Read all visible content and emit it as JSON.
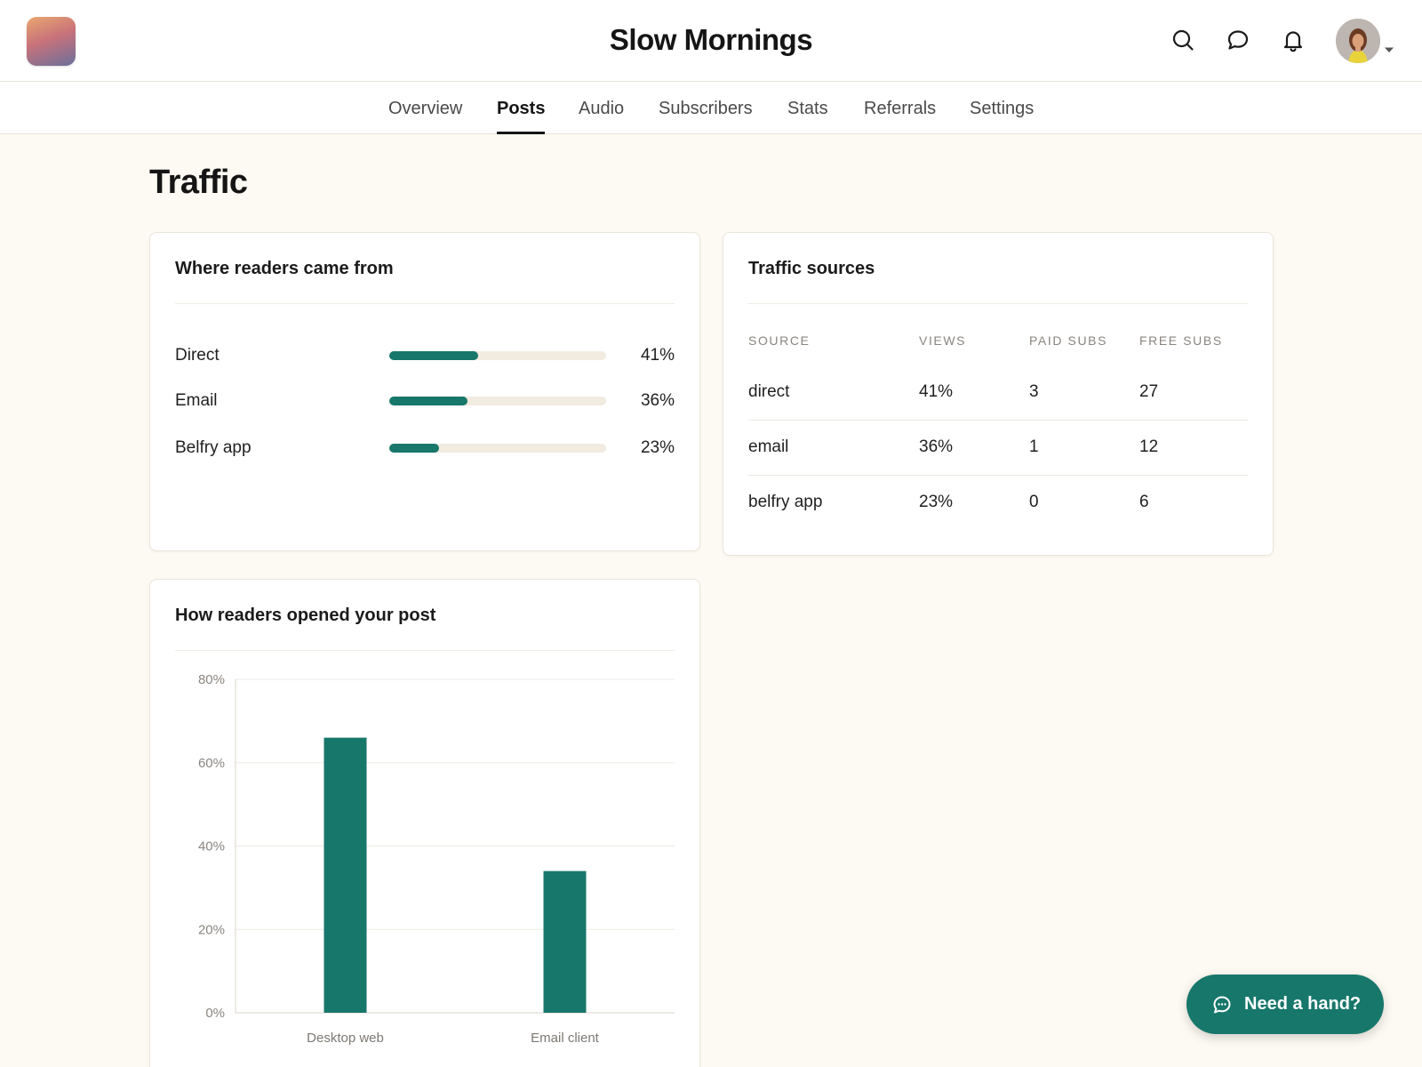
{
  "header": {
    "publication_title": "Slow Mornings",
    "icons": [
      "search-icon",
      "chat-icon",
      "bell-icon",
      "avatar",
      "chevron-down-icon"
    ]
  },
  "tabs": [
    {
      "label": "Overview",
      "active": false
    },
    {
      "label": "Posts",
      "active": true
    },
    {
      "label": "Audio",
      "active": false
    },
    {
      "label": "Subscribers",
      "active": false
    },
    {
      "label": "Stats",
      "active": false
    },
    {
      "label": "Referrals",
      "active": false
    },
    {
      "label": "Settings",
      "active": false
    }
  ],
  "page": {
    "title": "Traffic"
  },
  "where_from": {
    "title": "Where readers came from",
    "rows": [
      {
        "label": "Direct",
        "percent_text": "41%",
        "value": 41
      },
      {
        "label": "Email",
        "percent_text": "36%",
        "value": 36
      },
      {
        "label": "Belfry app",
        "percent_text": "23%",
        "value": 23
      }
    ]
  },
  "traffic_sources": {
    "title": "Traffic sources",
    "columns": [
      "SOURCE",
      "VIEWS",
      "PAID SUBS",
      "FREE SUBS"
    ],
    "rows": [
      [
        "direct",
        "41%",
        "3",
        "27"
      ],
      [
        "email",
        "36%",
        "1",
        "12"
      ],
      [
        "belfry app",
        "23%",
        "0",
        "6"
      ]
    ]
  },
  "opened": {
    "title": "How readers opened your post"
  },
  "chart_data": {
    "type": "bar",
    "categories": [
      "Desktop web",
      "Email client"
    ],
    "values": [
      66,
      34
    ],
    "yticks": [
      "0%",
      "20%",
      "40%",
      "60%",
      "80%"
    ],
    "ylim": [
      0,
      80
    ],
    "grid": true,
    "bar_color": "#17776b"
  },
  "help": {
    "label": "Need a hand?"
  },
  "colors": {
    "accent": "#17776b",
    "background": "#fdfaf3"
  }
}
